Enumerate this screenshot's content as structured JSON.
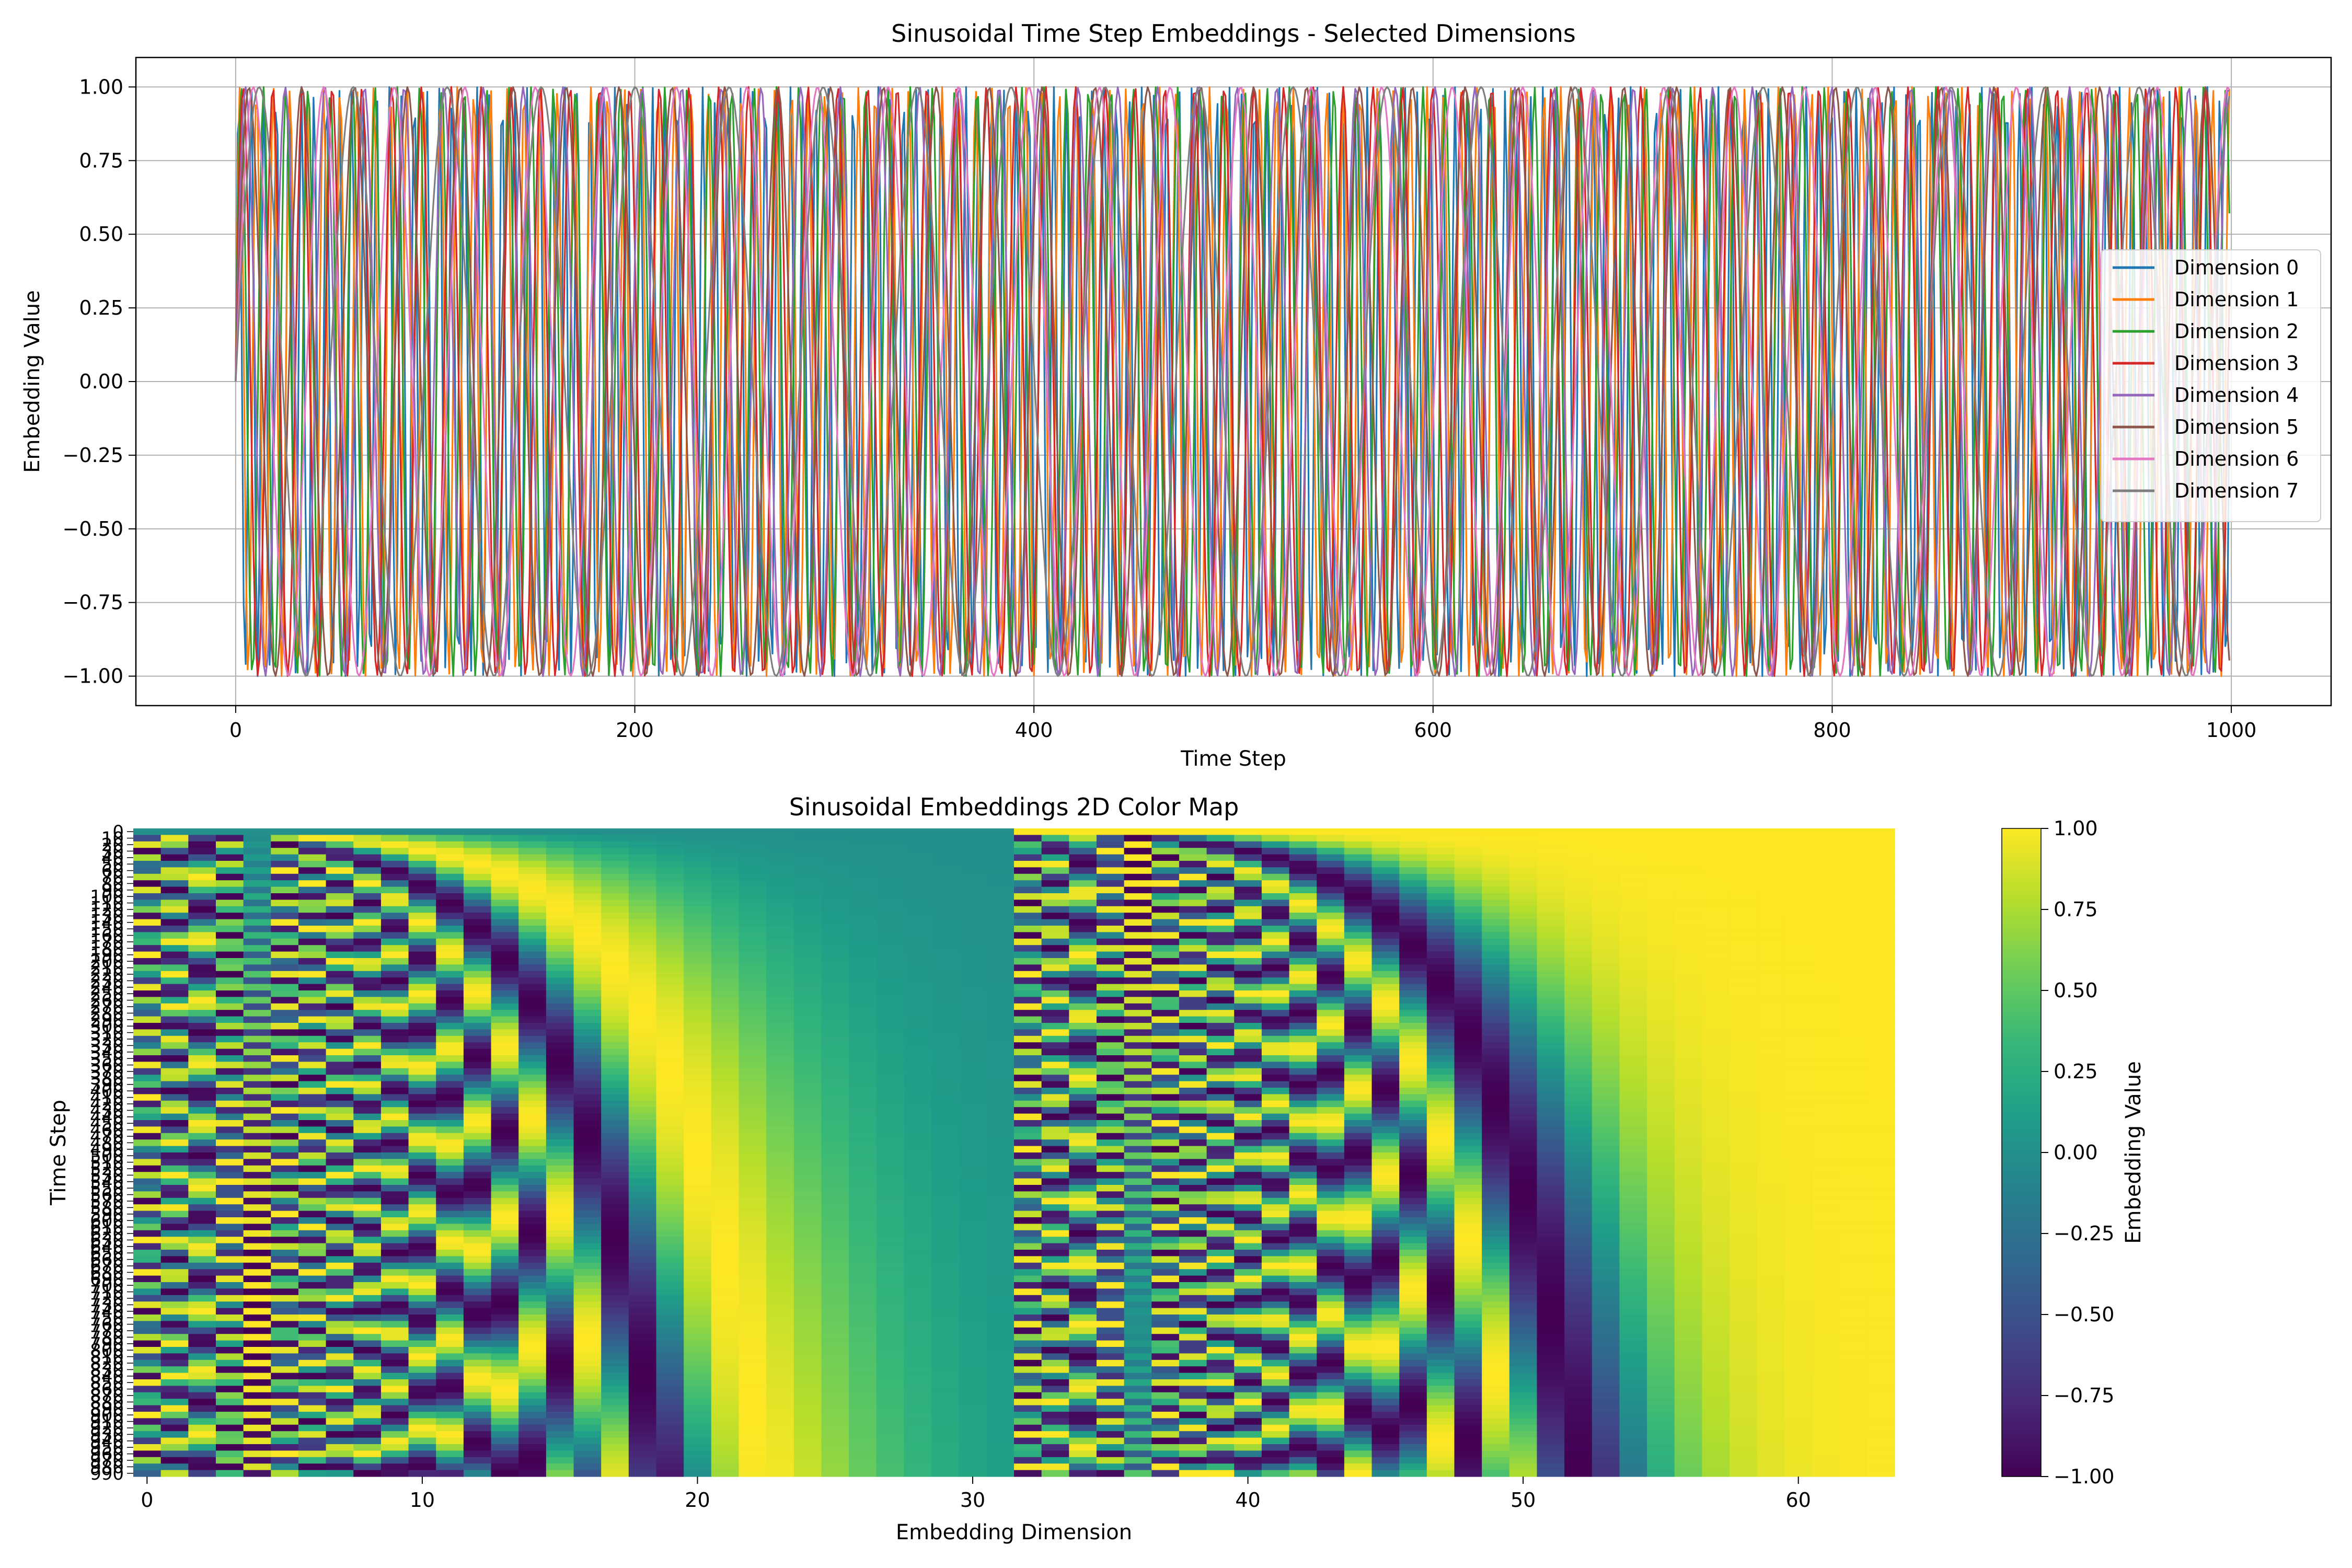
{
  "chart_data": [
    {
      "type": "line",
      "title": "Sinusoidal Time Step Embeddings - Selected Dimensions",
      "xlabel": "Time Step",
      "ylabel": "Embedding Value",
      "xlim": [
        -50,
        1050
      ],
      "ylim": [
        -1.1,
        1.1
      ],
      "x_range": [
        0,
        999
      ],
      "xticks": [
        0,
        200,
        400,
        600,
        800,
        1000
      ],
      "yticks": [
        -1.0,
        -0.75,
        -0.5,
        -0.25,
        0.0,
        0.25,
        0.5,
        0.75,
        1.0
      ],
      "ytick_labels": [
        "−1.00",
        "−0.75",
        "−0.50",
        "−0.25",
        "0.00",
        "0.25",
        "0.50",
        "0.75",
        "1.00"
      ],
      "grid": true,
      "legend_position": "center-right",
      "series": [
        {
          "name": "Dimension 0",
          "color": "#1f77b4",
          "func": "sin",
          "freq": 1.0
        },
        {
          "name": "Dimension 1",
          "color": "#ff7f0e",
          "func": "sin",
          "freq": 0.7499
        },
        {
          "name": "Dimension 2",
          "color": "#2ca02c",
          "func": "sin",
          "freq": 0.5623
        },
        {
          "name": "Dimension 3",
          "color": "#d62728",
          "func": "sin",
          "freq": 0.4217
        },
        {
          "name": "Dimension 4",
          "color": "#9467bd",
          "func": "sin",
          "freq": 0.3162
        },
        {
          "name": "Dimension 5",
          "color": "#8c564b",
          "func": "sin",
          "freq": 0.2371
        },
        {
          "name": "Dimension 6",
          "color": "#e377c2",
          "func": "sin",
          "freq": 0.1778
        },
        {
          "name": "Dimension 7",
          "color": "#7f7f7f",
          "func": "sin",
          "freq": 0.1334
        }
      ]
    },
    {
      "type": "heatmap",
      "title": "Sinusoidal Embeddings 2D Color Map",
      "xlabel": "Embedding Dimension",
      "ylabel": "Time Step",
      "colormap": "viridis",
      "columns": 64,
      "time_steps_start": 0,
      "time_steps_end": 999,
      "time_step_stride": 10,
      "xticks": [
        0,
        10,
        20,
        30,
        40,
        50,
        60
      ],
      "ytick_labels": [
        "0",
        "10",
        "20",
        "30",
        "40",
        "50",
        "60",
        "70",
        "80",
        "90",
        "100",
        "110",
        "120",
        "130",
        "140",
        "150",
        "160",
        "170",
        "180",
        "190",
        "200",
        "210",
        "220",
        "230",
        "240",
        "250",
        "260",
        "270",
        "280",
        "290",
        "300",
        "310",
        "320",
        "330",
        "340",
        "350",
        "360",
        "370",
        "380",
        "390",
        "400",
        "410",
        "420",
        "430",
        "440",
        "450",
        "460",
        "470",
        "480",
        "490",
        "500",
        "510",
        "520",
        "530",
        "540",
        "550",
        "560",
        "570",
        "580",
        "590",
        "600",
        "610",
        "620",
        "630",
        "640",
        "650",
        "660",
        "670",
        "680",
        "690",
        "700",
        "710",
        "720",
        "730",
        "740",
        "750",
        "760",
        "770",
        "780",
        "790",
        "800",
        "810",
        "820",
        "830",
        "840",
        "850",
        "860",
        "870",
        "880",
        "890",
        "900",
        "910",
        "920",
        "930",
        "940",
        "950",
        "960",
        "970",
        "980",
        "990"
      ],
      "colorbar": {
        "label": "Embedding Value",
        "vmin": -1.0,
        "vmax": 1.0,
        "ticks": [
          -1.0,
          -0.75,
          -0.5,
          -0.25,
          0.0,
          0.25,
          0.5,
          0.75,
          1.0
        ],
        "tick_labels": [
          "−1.00",
          "−0.75",
          "−0.50",
          "−0.25",
          "0.00",
          "0.25",
          "0.50",
          "0.75",
          "1.00"
        ]
      }
    }
  ]
}
